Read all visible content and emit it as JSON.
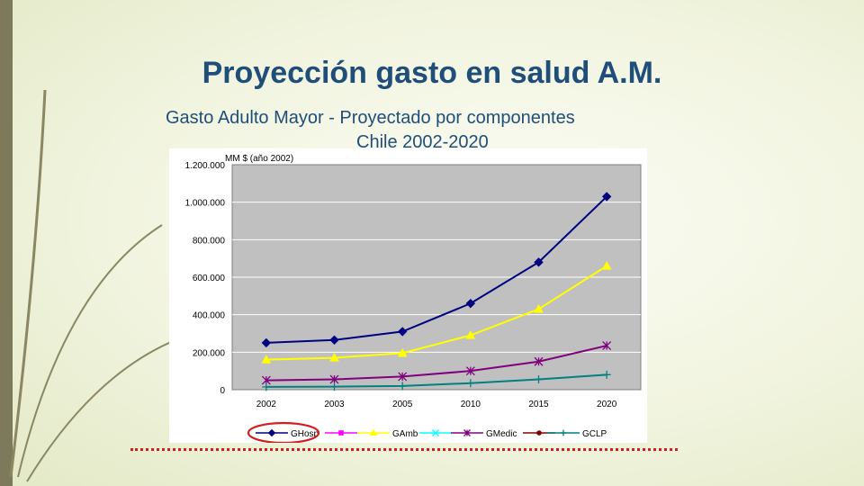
{
  "slide": {
    "title": "Proyección gasto en salud A.M.",
    "subtitle_line1": "Gasto Adulto Mayor -  Proyectado por componentes",
    "subtitle_line2": "Chile 2002-2020"
  },
  "colors": {
    "title": "#1f4e79",
    "plot_bg": "#c0c0c0",
    "highlight_ring": "#d21e1e"
  },
  "chart_data": {
    "type": "line",
    "ylabel": "MM $ (año 2002)",
    "categories": [
      "2002",
      "2003",
      "2005",
      "2010",
      "2015",
      "2020"
    ],
    "y_ticks": [
      "1.200.000",
      "1.000.000",
      "800.000",
      "600.000",
      "400.000",
      "200.000",
      "0"
    ],
    "ylim": [
      0,
      1200000
    ],
    "grid": true,
    "legend_position": "bottom",
    "series": [
      {
        "name": "GHosp",
        "color": "#000080",
        "marker": "diamond",
        "values": [
          250000,
          265000,
          310000,
          460000,
          680000,
          1030000
        ]
      },
      {
        "name": "GAmb",
        "color": "#ffff00",
        "marker": "triangle",
        "values": [
          160000,
          170000,
          195000,
          290000,
          430000,
          660000
        ]
      },
      {
        "name": "GMedic",
        "color": "#800080",
        "marker": "star",
        "values": [
          50000,
          55000,
          70000,
          100000,
          150000,
          235000
        ]
      },
      {
        "name": "GCLP",
        "color": "#008080",
        "marker": "plus",
        "values": [
          15000,
          16000,
          20000,
          35000,
          55000,
          80000
        ]
      }
    ],
    "legend_only_series": [
      {
        "color": "#ff00ff",
        "marker": "square"
      },
      {
        "color": "#00ffff",
        "marker": "x"
      },
      {
        "color": "#800000",
        "marker": "circle"
      }
    ],
    "legend_order": [
      "GHosp",
      "",
      "GAmb",
      "",
      "GMedic",
      "",
      "GCLP"
    ],
    "highlighted_legend_entry": "GHosp"
  }
}
